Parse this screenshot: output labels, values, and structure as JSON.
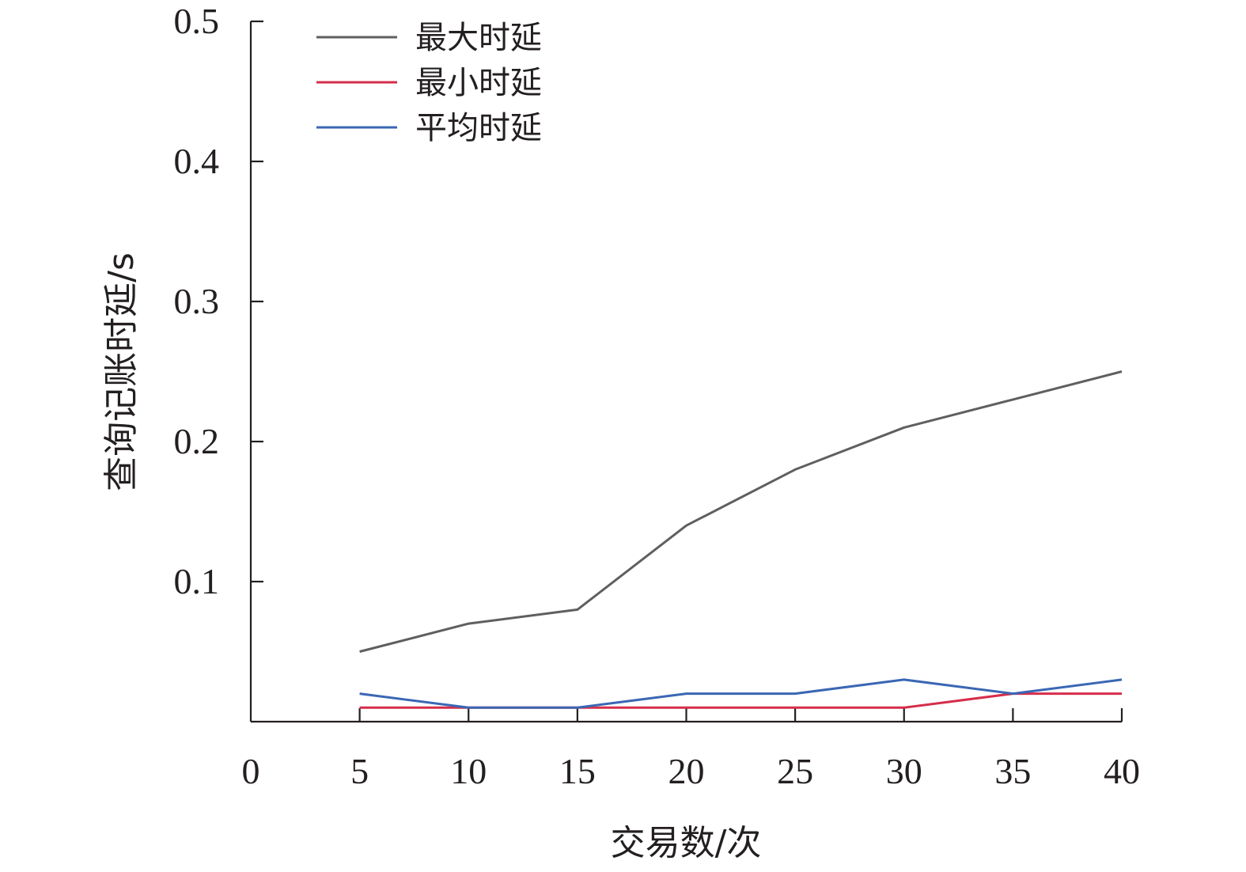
{
  "chart_data": {
    "type": "line",
    "xlabel": "交易数/次",
    "ylabel": "查询记账时延/s",
    "xlim": [
      0,
      40
    ],
    "ylim": [
      0,
      0.5
    ],
    "x_ticks": [
      0,
      5,
      10,
      15,
      20,
      25,
      30,
      35,
      40
    ],
    "x_tick_labels": [
      "0",
      "5",
      "10",
      "15",
      "20",
      "25",
      "30",
      "35",
      "40"
    ],
    "y_ticks": [
      0.1,
      0.2,
      0.3,
      0.4,
      0.5
    ],
    "y_tick_labels": [
      "0.1",
      "0.2",
      "0.3",
      "0.4",
      "0.5"
    ],
    "legend_position": "top-left",
    "grid": false,
    "x": [
      5,
      10,
      15,
      20,
      25,
      30,
      35,
      40
    ],
    "series": [
      {
        "name": "最大时延",
        "color": "#5f5f5f",
        "values": [
          0.05,
          0.07,
          0.08,
          0.14,
          0.18,
          0.21,
          0.23,
          0.25
        ]
      },
      {
        "name": "最小时延",
        "color": "#d62d4a",
        "values": [
          0.01,
          0.01,
          0.01,
          0.01,
          0.01,
          0.01,
          0.02,
          0.02
        ]
      },
      {
        "name": "平均时延",
        "color": "#3a67b4",
        "values": [
          0.02,
          0.01,
          0.01,
          0.02,
          0.02,
          0.03,
          0.02,
          0.03
        ]
      }
    ]
  }
}
